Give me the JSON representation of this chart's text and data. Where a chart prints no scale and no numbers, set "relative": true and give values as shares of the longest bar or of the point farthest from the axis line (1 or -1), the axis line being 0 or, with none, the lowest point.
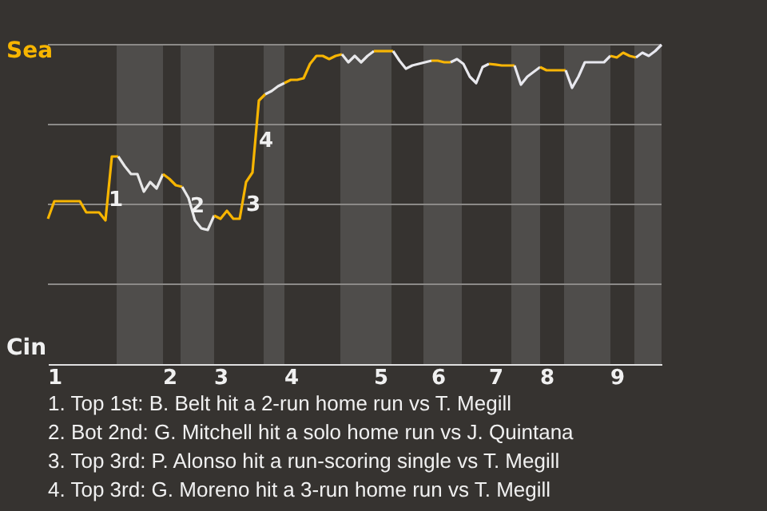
{
  "chart_data": {
    "type": "line",
    "relative": true,
    "grid": "y",
    "marker": "none",
    "line_style": "solid",
    "categories": [
      null,
      "1",
      null,
      null,
      null,
      null,
      null,
      null,
      null,
      null,
      null,
      null,
      null,
      null,
      null,
      null,
      null,
      null,
      null,
      "2",
      null,
      null,
      null,
      null,
      null,
      null,
      null,
      "3",
      null,
      null,
      null,
      null,
      null,
      null,
      null,
      null,
      null,
      null,
      "4",
      null,
      null,
      null,
      null,
      null,
      null,
      null,
      null,
      null,
      null,
      null,
      null,
      null,
      "5",
      null,
      null,
      null,
      null,
      null,
      null,
      null,
      null,
      "6",
      null,
      null,
      null,
      null,
      null,
      null,
      null,
      null,
      "7",
      null,
      null,
      null,
      null,
      null,
      null,
      null,
      "8",
      null,
      null,
      null,
      null,
      null,
      null,
      null,
      null,
      null,
      null,
      "9",
      null,
      null,
      null,
      null,
      null,
      null,
      null
    ],
    "series": [
      {
        "color": "#f7b500",
        "values": [
          0.455,
          0.51,
          0.51,
          0.51,
          0.51,
          0.51,
          0.475,
          0.475,
          0.475,
          0.45,
          0.65,
          0.65,
          null,
          null,
          null,
          null,
          null,
          null,
          null,
          null,
          null,
          null,
          null,
          null,
          null,
          null,
          null,
          null,
          null,
          null,
          null,
          null,
          null,
          null,
          null,
          null,
          null,
          null,
          null,
          null,
          null,
          null,
          null,
          null,
          null,
          null,
          null,
          null,
          null,
          null,
          null,
          null,
          null,
          null,
          null,
          null,
          null,
          null,
          null,
          null,
          null,
          null,
          null,
          null,
          null,
          null,
          null,
          null,
          null,
          null,
          null,
          null,
          null,
          null,
          null,
          null,
          null,
          null,
          null,
          null,
          null,
          null,
          null,
          null,
          null,
          null,
          null,
          null,
          null,
          null,
          null,
          null,
          null,
          null,
          null,
          null,
          null
        ]
      },
      {
        "color": "#e8e8e8",
        "values": [
          null,
          null,
          null,
          null,
          null,
          null,
          null,
          null,
          null,
          null,
          null,
          0.65,
          0.62,
          0.595,
          0.595,
          0.54,
          0.57,
          0.55,
          0.595,
          null,
          null,
          null,
          null,
          null,
          null,
          null,
          null,
          null,
          null,
          null,
          null,
          null,
          null,
          null,
          null,
          null,
          null,
          null,
          null,
          null,
          null,
          null,
          null,
          null,
          null,
          null,
          null,
          null,
          null,
          null,
          null,
          null,
          null,
          null,
          null,
          null,
          null,
          null,
          null,
          null,
          null,
          null,
          null,
          null,
          null,
          null,
          null,
          null,
          null,
          null,
          null,
          null,
          null,
          null,
          null,
          null,
          null,
          null,
          null,
          null,
          null,
          null,
          null,
          null,
          null,
          null,
          null,
          null,
          null,
          null,
          null,
          null,
          null,
          null,
          null,
          null,
          null
        ]
      },
      {
        "color": "#f7b501",
        "values": [
          null,
          null,
          null,
          null,
          null,
          null,
          null,
          null,
          null,
          null,
          null,
          null,
          null,
          null,
          null,
          null,
          null,
          null,
          0.595,
          0.58,
          0.56,
          0.555,
          null,
          null,
          null,
          null,
          null,
          null,
          null,
          null,
          null,
          null,
          null,
          null,
          null,
          null,
          null,
          null,
          null,
          null,
          null,
          null,
          null,
          null,
          null,
          null,
          null,
          null,
          null,
          null,
          null,
          null,
          null,
          null,
          null,
          null,
          null,
          null,
          null,
          null,
          null,
          null,
          null,
          null,
          null,
          null,
          null,
          null,
          null,
          null,
          null,
          null,
          null,
          null,
          null,
          null,
          null,
          null,
          null,
          null,
          null,
          null,
          null,
          null,
          null,
          null,
          null,
          null,
          null,
          null,
          null,
          null,
          null,
          null,
          null,
          null,
          null
        ]
      },
      {
        "color": "#e8e8e9",
        "values": [
          null,
          null,
          null,
          null,
          null,
          null,
          null,
          null,
          null,
          null,
          null,
          null,
          null,
          null,
          null,
          null,
          null,
          null,
          null,
          null,
          null,
          0.555,
          0.52,
          0.45,
          0.425,
          0.42,
          0.465,
          null,
          null,
          null,
          null,
          null,
          null,
          null,
          null,
          null,
          null,
          null,
          null,
          null,
          null,
          null,
          null,
          null,
          null,
          null,
          null,
          null,
          null,
          null,
          null,
          null,
          null,
          null,
          null,
          null,
          null,
          null,
          null,
          null,
          null,
          null,
          null,
          null,
          null,
          null,
          null,
          null,
          null,
          null,
          null,
          null,
          null,
          null,
          null,
          null,
          null,
          null,
          null,
          null,
          null,
          null,
          null,
          null,
          null,
          null,
          null,
          null,
          null,
          null,
          null,
          null,
          null,
          null,
          null,
          null,
          null
        ]
      },
      {
        "color": "#f7b502",
        "values": [
          null,
          null,
          null,
          null,
          null,
          null,
          null,
          null,
          null,
          null,
          null,
          null,
          null,
          null,
          null,
          null,
          null,
          null,
          null,
          null,
          null,
          null,
          null,
          null,
          null,
          null,
          0.465,
          0.455,
          0.48,
          0.455,
          0.455,
          0.57,
          0.6,
          0.825,
          0.845,
          null,
          null,
          null,
          null,
          null,
          null,
          null,
          null,
          null,
          null,
          null,
          null,
          null,
          null,
          null,
          null,
          null,
          null,
          null,
          null,
          null,
          null,
          null,
          null,
          null,
          null,
          null,
          null,
          null,
          null,
          null,
          null,
          null,
          null,
          null,
          null,
          null,
          null,
          null,
          null,
          null,
          null,
          null,
          null,
          null,
          null,
          null,
          null,
          null,
          null,
          null,
          null,
          null,
          null,
          null,
          null,
          null,
          null,
          null,
          null,
          null,
          null
        ]
      },
      {
        "color": "#e8e8ea",
        "values": [
          null,
          null,
          null,
          null,
          null,
          null,
          null,
          null,
          null,
          null,
          null,
          null,
          null,
          null,
          null,
          null,
          null,
          null,
          null,
          null,
          null,
          null,
          null,
          null,
          null,
          null,
          null,
          null,
          null,
          null,
          null,
          null,
          null,
          null,
          0.845,
          0.855,
          0.87,
          0.88,
          null,
          null,
          null,
          null,
          null,
          null,
          null,
          null,
          null,
          null,
          null,
          null,
          null,
          null,
          null,
          null,
          null,
          null,
          null,
          null,
          null,
          null,
          null,
          null,
          null,
          null,
          null,
          null,
          null,
          null,
          null,
          null,
          null,
          null,
          null,
          null,
          null,
          null,
          null,
          null,
          null,
          null,
          null,
          null,
          null,
          null,
          null,
          null,
          null,
          null,
          null,
          null,
          null,
          null,
          null,
          null,
          null,
          null,
          null
        ]
      },
      {
        "color": "#f7b503",
        "values": [
          null,
          null,
          null,
          null,
          null,
          null,
          null,
          null,
          null,
          null,
          null,
          null,
          null,
          null,
          null,
          null,
          null,
          null,
          null,
          null,
          null,
          null,
          null,
          null,
          null,
          null,
          null,
          null,
          null,
          null,
          null,
          null,
          null,
          null,
          null,
          null,
          null,
          0.88,
          0.89,
          0.89,
          0.895,
          0.94,
          0.965,
          0.965,
          0.955,
          0.965,
          0.97,
          null,
          null,
          null,
          null,
          null,
          null,
          null,
          null,
          null,
          null,
          null,
          null,
          null,
          null,
          null,
          null,
          null,
          null,
          null,
          null,
          null,
          null,
          null,
          null,
          null,
          null,
          null,
          null,
          null,
          null,
          null,
          null,
          null,
          null,
          null,
          null,
          null,
          null,
          null,
          null,
          null,
          null,
          null,
          null,
          null,
          null,
          null,
          null,
          null,
          null
        ]
      },
      {
        "color": "#e8e8eb",
        "values": [
          null,
          null,
          null,
          null,
          null,
          null,
          null,
          null,
          null,
          null,
          null,
          null,
          null,
          null,
          null,
          null,
          null,
          null,
          null,
          null,
          null,
          null,
          null,
          null,
          null,
          null,
          null,
          null,
          null,
          null,
          null,
          null,
          null,
          null,
          null,
          null,
          null,
          null,
          null,
          null,
          null,
          null,
          null,
          null,
          null,
          null,
          0.97,
          0.945,
          0.965,
          0.945,
          0.965,
          0.98,
          null,
          null,
          null,
          null,
          null,
          null,
          null,
          null,
          null,
          null,
          null,
          null,
          null,
          null,
          null,
          null,
          null,
          null,
          null,
          null,
          null,
          null,
          null,
          null,
          null,
          null,
          null,
          null,
          null,
          null,
          null,
          null,
          null,
          null,
          null,
          null,
          null,
          null,
          null,
          null,
          null,
          null,
          null,
          null,
          null
        ]
      },
      {
        "color": "#f7b504",
        "values": [
          null,
          null,
          null,
          null,
          null,
          null,
          null,
          null,
          null,
          null,
          null,
          null,
          null,
          null,
          null,
          null,
          null,
          null,
          null,
          null,
          null,
          null,
          null,
          null,
          null,
          null,
          null,
          null,
          null,
          null,
          null,
          null,
          null,
          null,
          null,
          null,
          null,
          null,
          null,
          null,
          null,
          null,
          null,
          null,
          null,
          null,
          null,
          null,
          null,
          null,
          null,
          0.98,
          0.98,
          0.98,
          0.98,
          null,
          null,
          null,
          null,
          null,
          null,
          null,
          null,
          null,
          null,
          null,
          null,
          null,
          null,
          null,
          null,
          null,
          null,
          null,
          null,
          null,
          null,
          null,
          null,
          null,
          null,
          null,
          null,
          null,
          null,
          null,
          null,
          null,
          null,
          null,
          null,
          null,
          null,
          null,
          null,
          null,
          null
        ]
      },
      {
        "color": "#e8e8ec",
        "values": [
          null,
          null,
          null,
          null,
          null,
          null,
          null,
          null,
          null,
          null,
          null,
          null,
          null,
          null,
          null,
          null,
          null,
          null,
          null,
          null,
          null,
          null,
          null,
          null,
          null,
          null,
          null,
          null,
          null,
          null,
          null,
          null,
          null,
          null,
          null,
          null,
          null,
          null,
          null,
          null,
          null,
          null,
          null,
          null,
          null,
          null,
          null,
          null,
          null,
          null,
          null,
          null,
          null,
          null,
          0.98,
          0.95,
          0.925,
          0.935,
          0.94,
          0.945,
          0.95,
          null,
          null,
          null,
          null,
          null,
          null,
          null,
          null,
          null,
          null,
          null,
          null,
          null,
          null,
          null,
          null,
          null,
          null,
          null,
          null,
          null,
          null,
          null,
          null,
          null,
          null,
          null,
          null,
          null,
          null,
          null,
          null,
          null,
          null,
          null,
          null
        ]
      },
      {
        "color": "#f7b505",
        "values": [
          null,
          null,
          null,
          null,
          null,
          null,
          null,
          null,
          null,
          null,
          null,
          null,
          null,
          null,
          null,
          null,
          null,
          null,
          null,
          null,
          null,
          null,
          null,
          null,
          null,
          null,
          null,
          null,
          null,
          null,
          null,
          null,
          null,
          null,
          null,
          null,
          null,
          null,
          null,
          null,
          null,
          null,
          null,
          null,
          null,
          null,
          null,
          null,
          null,
          null,
          null,
          null,
          null,
          null,
          null,
          null,
          null,
          null,
          null,
          null,
          0.95,
          0.95,
          0.945,
          0.945,
          null,
          null,
          null,
          null,
          null,
          null,
          null,
          null,
          null,
          null,
          null,
          null,
          null,
          null,
          null,
          null,
          null,
          null,
          null,
          null,
          null,
          null,
          null,
          null,
          null,
          null,
          null,
          null,
          null,
          null,
          null,
          null,
          null
        ]
      },
      {
        "color": "#e8e8ed",
        "values": [
          null,
          null,
          null,
          null,
          null,
          null,
          null,
          null,
          null,
          null,
          null,
          null,
          null,
          null,
          null,
          null,
          null,
          null,
          null,
          null,
          null,
          null,
          null,
          null,
          null,
          null,
          null,
          null,
          null,
          null,
          null,
          null,
          null,
          null,
          null,
          null,
          null,
          null,
          null,
          null,
          null,
          null,
          null,
          null,
          null,
          null,
          null,
          null,
          null,
          null,
          null,
          null,
          null,
          null,
          null,
          null,
          null,
          null,
          null,
          null,
          null,
          null,
          null,
          0.945,
          0.955,
          0.94,
          0.9,
          0.88,
          0.93,
          0.94,
          null,
          null,
          null,
          null,
          null,
          null,
          null,
          null,
          null,
          null,
          null,
          null,
          null,
          null,
          null,
          null,
          null,
          null,
          null,
          null,
          null,
          null,
          null,
          null,
          null,
          null,
          null
        ]
      },
      {
        "color": "#f7b506",
        "values": [
          null,
          null,
          null,
          null,
          null,
          null,
          null,
          null,
          null,
          null,
          null,
          null,
          null,
          null,
          null,
          null,
          null,
          null,
          null,
          null,
          null,
          null,
          null,
          null,
          null,
          null,
          null,
          null,
          null,
          null,
          null,
          null,
          null,
          null,
          null,
          null,
          null,
          null,
          null,
          null,
          null,
          null,
          null,
          null,
          null,
          null,
          null,
          null,
          null,
          null,
          null,
          null,
          null,
          null,
          null,
          null,
          null,
          null,
          null,
          null,
          null,
          null,
          null,
          null,
          null,
          null,
          null,
          null,
          null,
          0.94,
          0.938,
          0.935,
          0.935,
          0.935,
          null,
          null,
          null,
          null,
          null,
          null,
          null,
          null,
          null,
          null,
          null,
          null,
          null,
          null,
          null,
          null,
          null,
          null,
          null,
          null,
          null,
          null,
          null
        ]
      },
      {
        "color": "#e8e8ee",
        "values": [
          null,
          null,
          null,
          null,
          null,
          null,
          null,
          null,
          null,
          null,
          null,
          null,
          null,
          null,
          null,
          null,
          null,
          null,
          null,
          null,
          null,
          null,
          null,
          null,
          null,
          null,
          null,
          null,
          null,
          null,
          null,
          null,
          null,
          null,
          null,
          null,
          null,
          null,
          null,
          null,
          null,
          null,
          null,
          null,
          null,
          null,
          null,
          null,
          null,
          null,
          null,
          null,
          null,
          null,
          null,
          null,
          null,
          null,
          null,
          null,
          null,
          null,
          null,
          null,
          null,
          null,
          null,
          null,
          null,
          null,
          null,
          null,
          null,
          0.935,
          0.875,
          0.9,
          0.915,
          0.93,
          null,
          null,
          null,
          null,
          null,
          null,
          null,
          null,
          null,
          null,
          null,
          null,
          null,
          null,
          null,
          null,
          null,
          null,
          null
        ]
      },
      {
        "color": "#f7b507",
        "values": [
          null,
          null,
          null,
          null,
          null,
          null,
          null,
          null,
          null,
          null,
          null,
          null,
          null,
          null,
          null,
          null,
          null,
          null,
          null,
          null,
          null,
          null,
          null,
          null,
          null,
          null,
          null,
          null,
          null,
          null,
          null,
          null,
          null,
          null,
          null,
          null,
          null,
          null,
          null,
          null,
          null,
          null,
          null,
          null,
          null,
          null,
          null,
          null,
          null,
          null,
          null,
          null,
          null,
          null,
          null,
          null,
          null,
          null,
          null,
          null,
          null,
          null,
          null,
          null,
          null,
          null,
          null,
          null,
          null,
          null,
          null,
          null,
          null,
          null,
          null,
          null,
          null,
          0.93,
          0.92,
          0.92,
          0.92,
          0.92,
          null,
          null,
          null,
          null,
          null,
          null,
          null,
          null,
          null,
          null,
          null,
          null,
          null,
          null,
          null
        ]
      },
      {
        "color": "#e8e8ef",
        "values": [
          null,
          null,
          null,
          null,
          null,
          null,
          null,
          null,
          null,
          null,
          null,
          null,
          null,
          null,
          null,
          null,
          null,
          null,
          null,
          null,
          null,
          null,
          null,
          null,
          null,
          null,
          null,
          null,
          null,
          null,
          null,
          null,
          null,
          null,
          null,
          null,
          null,
          null,
          null,
          null,
          null,
          null,
          null,
          null,
          null,
          null,
          null,
          null,
          null,
          null,
          null,
          null,
          null,
          null,
          null,
          null,
          null,
          null,
          null,
          null,
          null,
          null,
          null,
          null,
          null,
          null,
          null,
          null,
          null,
          null,
          null,
          null,
          null,
          null,
          null,
          null,
          null,
          null,
          null,
          null,
          null,
          0.92,
          0.865,
          0.9,
          0.945,
          0.945,
          0.945,
          0.945,
          0.965,
          null,
          null,
          null,
          null,
          null,
          null,
          null,
          null
        ]
      },
      {
        "color": "#f7b508",
        "values": [
          null,
          null,
          null,
          null,
          null,
          null,
          null,
          null,
          null,
          null,
          null,
          null,
          null,
          null,
          null,
          null,
          null,
          null,
          null,
          null,
          null,
          null,
          null,
          null,
          null,
          null,
          null,
          null,
          null,
          null,
          null,
          null,
          null,
          null,
          null,
          null,
          null,
          null,
          null,
          null,
          null,
          null,
          null,
          null,
          null,
          null,
          null,
          null,
          null,
          null,
          null,
          null,
          null,
          null,
          null,
          null,
          null,
          null,
          null,
          null,
          null,
          null,
          null,
          null,
          null,
          null,
          null,
          null,
          null,
          null,
          null,
          null,
          null,
          null,
          null,
          null,
          null,
          null,
          null,
          null,
          null,
          null,
          null,
          null,
          null,
          null,
          null,
          null,
          0.965,
          0.96,
          0.975,
          0.965,
          0.96,
          null,
          null,
          null,
          null
        ]
      },
      {
        "color": "#e8e8f0",
        "values": [
          null,
          null,
          null,
          null,
          null,
          null,
          null,
          null,
          null,
          null,
          null,
          null,
          null,
          null,
          null,
          null,
          null,
          null,
          null,
          null,
          null,
          null,
          null,
          null,
          null,
          null,
          null,
          null,
          null,
          null,
          null,
          null,
          null,
          null,
          null,
          null,
          null,
          null,
          null,
          null,
          null,
          null,
          null,
          null,
          null,
          null,
          null,
          null,
          null,
          null,
          null,
          null,
          null,
          null,
          null,
          null,
          null,
          null,
          null,
          null,
          null,
          null,
          null,
          null,
          null,
          null,
          null,
          null,
          null,
          null,
          null,
          null,
          null,
          null,
          null,
          null,
          null,
          null,
          null,
          null,
          null,
          null,
          null,
          null,
          null,
          null,
          null,
          null,
          null,
          null,
          null,
          null,
          0.96,
          0.975,
          0.965,
          0.98,
          1
        ]
      }
    ],
    "annotations": [
      "Sea",
      "Cin",
      "1",
      "2",
      "3",
      "4",
      "1. Top 1st: B. Belt hit a 2-run home run vs T. Megill",
      "2. Bot 2nd: G. Mitchell hit a solo home run vs J. Quintana",
      "3. Top 3rd: P. Alonso hit a run-scoring single vs T. Megill",
      "4. Top 3rd: G. Moreno hit a 3-run home run vs T. Megill"
    ]
  }
}
